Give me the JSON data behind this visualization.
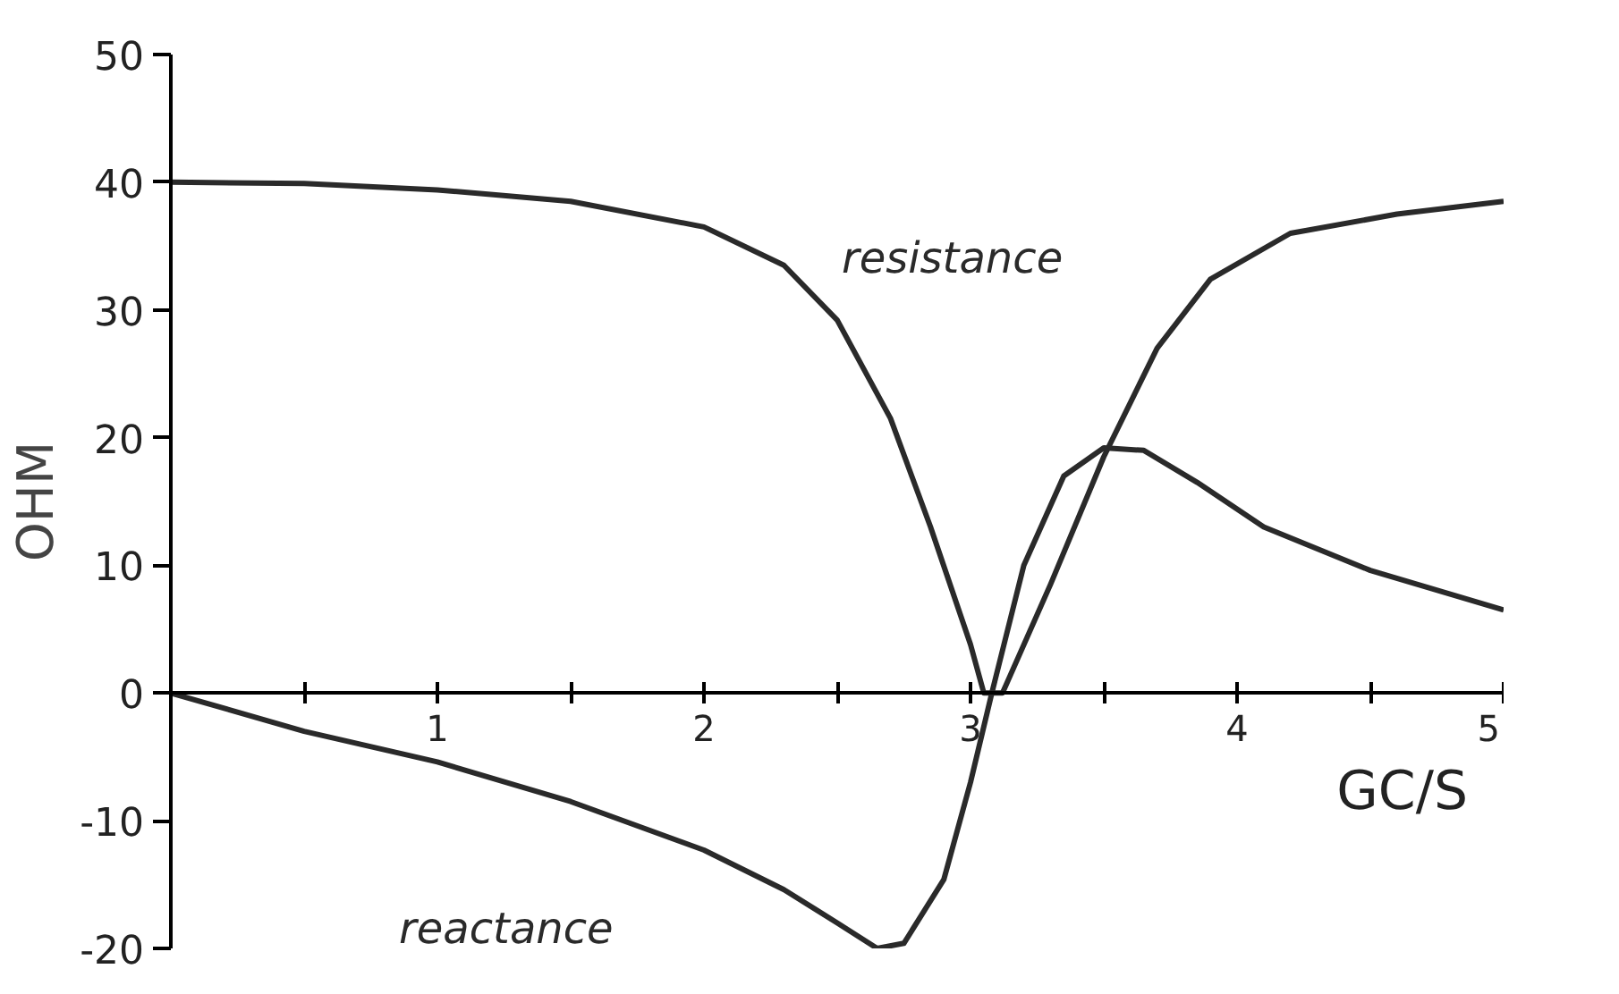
{
  "chart_data": {
    "type": "line",
    "xlabel": "GC/S",
    "ylabel": "OHM",
    "xlim": [
      0,
      5
    ],
    "ylim": [
      -20,
      50
    ],
    "xticks": [
      {
        "value": 0.5,
        "label": null
      },
      1,
      {
        "value": 1.5,
        "label": null
      },
      2,
      {
        "value": 2.5,
        "label": null
      },
      3,
      {
        "value": 3.5,
        "label": null
      },
      4,
      {
        "value": 4.5,
        "label": null
      },
      5
    ],
    "yticks": [
      -20,
      -10,
      0,
      10,
      20,
      30,
      40,
      50
    ],
    "grid": false,
    "marker": "none",
    "line_style": "solid",
    "series": [
      {
        "name": "resistance",
        "color": "#2a2a2a",
        "x": [
          0,
          0.5,
          1,
          1.5,
          2,
          2.3,
          2.5,
          2.7,
          2.85,
          3.0,
          3.05,
          3.12,
          3.3,
          3.5,
          3.7,
          3.9,
          4.2,
          4.6,
          5
        ],
        "values": [
          40,
          39.9,
          39.4,
          38.5,
          36.5,
          33.5,
          29.2,
          21.5,
          13,
          3.8,
          0,
          0,
          8.5,
          18.5,
          27,
          32.4,
          36,
          37.5,
          38.5
        ]
      },
      {
        "name": "reactance",
        "color": "#2a2a2a",
        "x": [
          0,
          0.5,
          1,
          1.5,
          2,
          2.3,
          2.5,
          2.65,
          2.75,
          2.9,
          3.0,
          3.08,
          3.2,
          3.35,
          3.5,
          3.65,
          3.85,
          4.1,
          4.5,
          5
        ],
        "values": [
          0,
          -3,
          -5.4,
          -8.5,
          -12.3,
          -15.4,
          -18,
          -20,
          -19.6,
          -14.6,
          -7,
          0,
          10,
          17,
          19.2,
          19,
          16.5,
          13,
          9.6,
          6.5
        ]
      }
    ]
  }
}
